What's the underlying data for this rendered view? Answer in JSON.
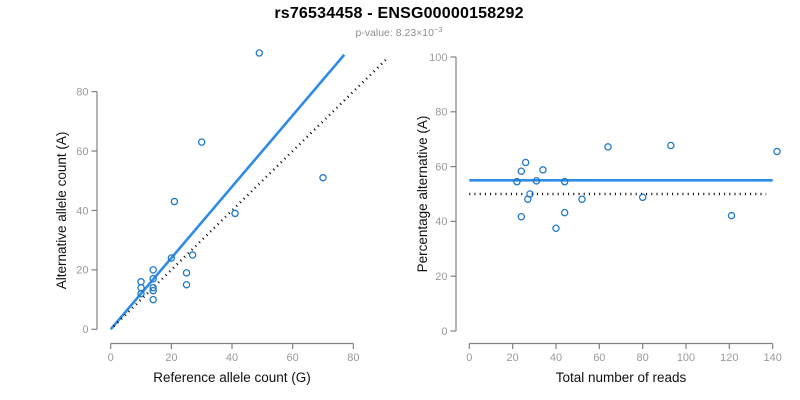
{
  "header": {
    "title": "rs76534458 - ENSG00000158292",
    "p_value_label": "p-value: 8.23×10",
    "p_value_exponent": "−3"
  },
  "colors": {
    "line_blue": "#2E8CE8",
    "point_blue": "#1F78C8",
    "dotted_line": "#000000",
    "axis_line": "#818181",
    "tick_label": "#9A9A9A",
    "axis_title": "#111111",
    "title": "#000000",
    "subtitle": "#8F8F8F"
  },
  "chart_data": [
    {
      "type": "scatter",
      "panel": "left",
      "xlabel": "Reference allele count (G)",
      "ylabel": "Alternative allele count (A)",
      "xlim": [
        0,
        80
      ],
      "ylim": [
        0,
        80
      ],
      "xticks": [
        0,
        20,
        40,
        60,
        80
      ],
      "yticks": [
        0,
        20,
        40,
        60,
        80
      ],
      "grid": false,
      "points": [
        [
          10,
          12
        ],
        [
          10,
          14
        ],
        [
          10,
          16
        ],
        [
          14,
          10
        ],
        [
          14,
          13
        ],
        [
          14,
          14
        ],
        [
          14,
          17
        ],
        [
          14,
          20
        ],
        [
          20,
          24
        ],
        [
          21,
          43
        ],
        [
          25,
          15
        ],
        [
          25,
          19
        ],
        [
          27,
          25
        ],
        [
          30,
          63
        ],
        [
          41,
          39
        ],
        [
          49,
          93
        ],
        [
          70,
          51
        ]
      ],
      "lines": [
        {
          "name": "fit-line",
          "style": "solid",
          "color_key": "line_blue",
          "x1": 0,
          "y1": 0,
          "x2": 77,
          "y2": 92.4
        },
        {
          "name": "identity-line",
          "style": "dotted",
          "color_key": "dotted_line",
          "x1": 1,
          "y1": 1,
          "x2": 91,
          "y2": 91
        }
      ]
    },
    {
      "type": "scatter",
      "panel": "right",
      "xlabel": "Total number of reads",
      "ylabel": "Percentage alternative (A)",
      "xlim": [
        0,
        140
      ],
      "ylim": [
        0,
        100
      ],
      "xticks": [
        0,
        20,
        40,
        60,
        80,
        100,
        120,
        140
      ],
      "yticks": [
        0,
        20,
        40,
        60,
        80,
        100
      ],
      "grid": false,
      "points": [
        [
          22,
          54.5
        ],
        [
          24,
          58.3
        ],
        [
          26,
          61.5
        ],
        [
          24,
          41.7
        ],
        [
          27,
          48.1
        ],
        [
          28,
          50.0
        ],
        [
          31,
          54.8
        ],
        [
          34,
          58.8
        ],
        [
          44,
          54.5
        ],
        [
          64,
          67.2
        ],
        [
          40,
          37.5
        ],
        [
          44,
          43.2
        ],
        [
          52,
          48.1
        ],
        [
          93,
          67.7
        ],
        [
          80,
          48.8
        ],
        [
          142,
          65.5
        ],
        [
          121,
          42.1
        ]
      ],
      "lines": [
        {
          "name": "mean-line",
          "style": "solid",
          "color_key": "line_blue",
          "x1": 0,
          "y1": 55,
          "x2": 140,
          "y2": 55
        },
        {
          "name": "reference-line",
          "style": "dotted",
          "color_key": "dotted_line",
          "x1": 0,
          "y1": 50,
          "x2": 137,
          "y2": 50
        }
      ]
    }
  ]
}
